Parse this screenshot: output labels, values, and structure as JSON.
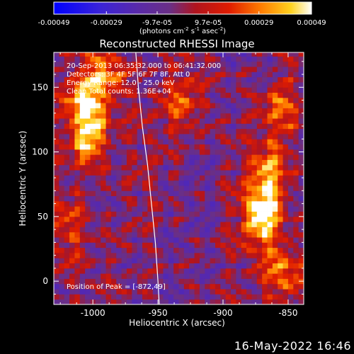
{
  "colorbar": {
    "ticks": [
      "-0.00049",
      "-0.00029",
      "-9.7e-05",
      "9.7e-05",
      "0.00029",
      "0.00049"
    ],
    "tick_values": [
      -0.00049,
      -0.00029,
      -9.7e-05,
      9.7e-05,
      0.00029,
      0.00049
    ],
    "range": [
      -0.00049,
      0.00049
    ],
    "units_main": "(photons cm",
    "units_exp1": "-2",
    "units_mid": " s",
    "units_exp2": "-1",
    "units_end": " asec",
    "units_exp3": "-2",
    "units_close": ")"
  },
  "annotations": {
    "time_range": "20-Sep-2013 06:35:32.000 to 06:41:32.000",
    "detectors": "Detectors: 3F 4F 5F 6F 7F 8F, Att 0",
    "energy": "Energy Range: 12.0 - 25.0 keV",
    "clean": "Clean     Total counts: 1.36E+04",
    "peak": "Position of Peak = [-872,49]"
  },
  "footer": {
    "date": "16-May-2022 16:46"
  },
  "chart_data": {
    "type": "heatmap",
    "title": "Reconstructed RHESSI Image",
    "xlabel": "Heliocentric X (arcsec)",
    "ylabel": "Heliocentric Y (arcsec)",
    "xlim": [
      -1030,
      -838
    ],
    "ylim": [
      -18,
      177
    ],
    "xticks": [
      -1000,
      -950,
      -900,
      -850
    ],
    "xtick_labels": [
      "-1000",
      "-950",
      "-900",
      "-850"
    ],
    "yticks": [
      0,
      50,
      100,
      150
    ],
    "ytick_labels": [
      "0",
      "50",
      "100",
      "150"
    ],
    "colormap": "blue-purple-red-orange-yellow-white (IDL table 5 style)",
    "peak_position": [
      -872,
      49
    ],
    "sources": [
      {
        "x": -1005,
        "y": 110,
        "intensity": 0.00049
      },
      {
        "x": -1010,
        "y": 140,
        "intensity": 0.0004
      },
      {
        "x": -992,
        "y": 155,
        "intensity": 0.00035
      },
      {
        "x": -872,
        "y": 49,
        "intensity": 0.00049
      },
      {
        "x": -865,
        "y": 80,
        "intensity": 0.00035
      },
      {
        "x": -858,
        "y": 130,
        "intensity": 0.0003
      },
      {
        "x": -855,
        "y": 5,
        "intensity": 0.0003
      },
      {
        "x": -932,
        "y": 135,
        "intensity": 0.00025
      },
      {
        "x": -1018,
        "y": 40,
        "intensity": 0.0002
      }
    ],
    "limb_curve": [
      [
        -967,
        177
      ],
      [
        -965,
        150
      ],
      [
        -962,
        120
      ],
      [
        -958,
        90
      ],
      [
        -955,
        60
      ],
      [
        -952,
        30
      ],
      [
        -950,
        0
      ],
      [
        -949,
        -18
      ]
    ]
  }
}
